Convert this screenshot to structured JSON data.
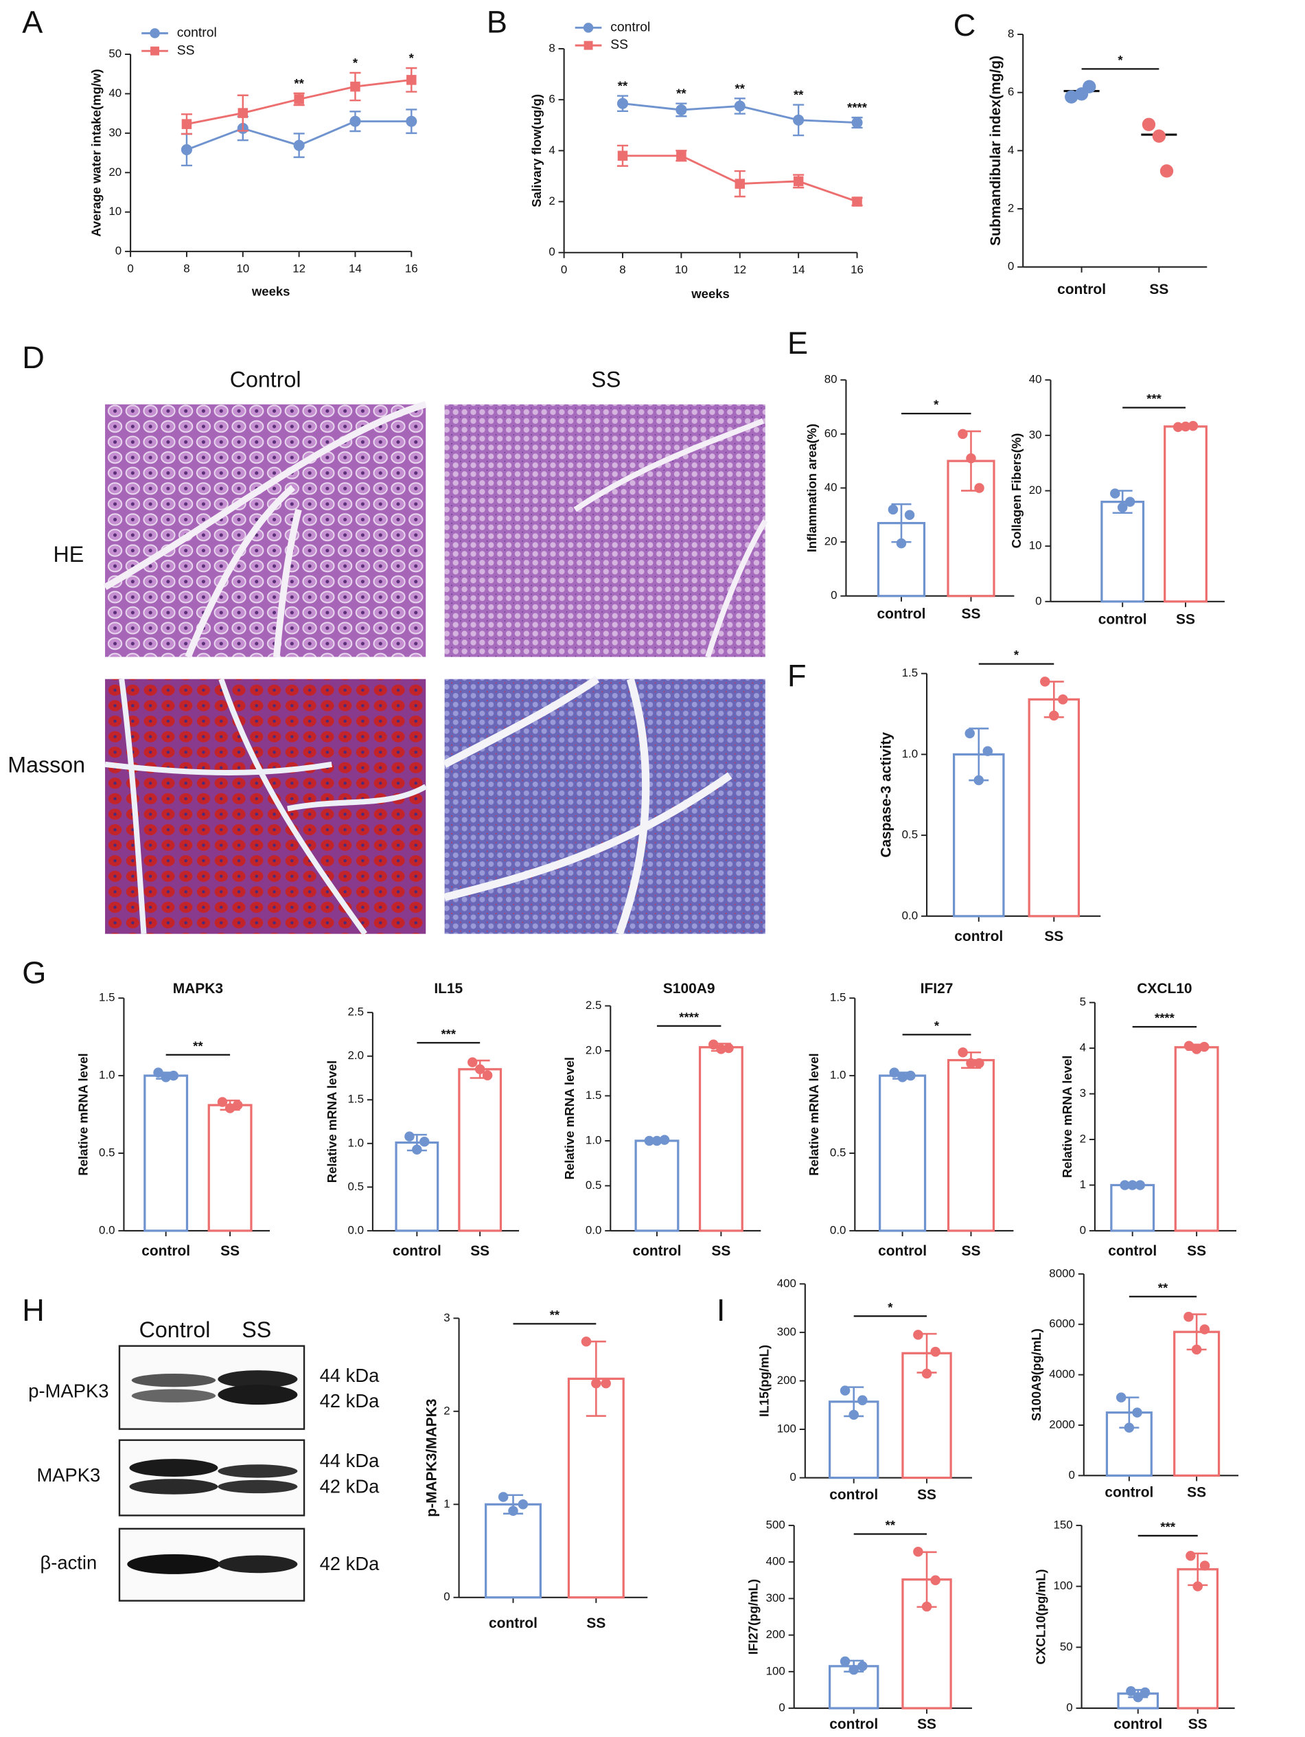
{
  "panel_labels": [
    "A",
    "B",
    "C",
    "D",
    "E",
    "F",
    "G",
    "H",
    "I"
  ],
  "histology": {
    "columns": [
      "Control",
      "SS"
    ],
    "rows": [
      "HE",
      "Masson"
    ]
  },
  "western_blot": {
    "columns": [
      "Control",
      "SS"
    ],
    "rows": [
      {
        "label": "p-MAPK3",
        "sizes": [
          "44 kDa",
          "42 kDa"
        ]
      },
      {
        "label": "MAPK3",
        "sizes": [
          "44 kDa",
          "42 kDa"
        ]
      },
      {
        "label": "β-actin",
        "sizes": [
          "42 kDa"
        ]
      }
    ]
  },
  "chart_data": [
    {
      "type": "line",
      "ylabel": "Average water intake(mg/w)",
      "xlabel": "weeks",
      "x": [
        8,
        10,
        12,
        14,
        16
      ],
      "xlim": [
        0,
        16
      ],
      "xticks": [
        0,
        8,
        10,
        12,
        14,
        16
      ],
      "ylim": [
        0,
        50
      ],
      "yticks": [
        0,
        10,
        20,
        30,
        40,
        50
      ],
      "legend": "top-left",
      "series": [
        {
          "name": "control",
          "color": "#6f93cf",
          "marker": "circle",
          "values": [
            25.8,
            31.2,
            26.9,
            33,
            33
          ],
          "errors": [
            4,
            3,
            3,
            2.5,
            3
          ]
        },
        {
          "name": "SS",
          "color": "#ec6e6e",
          "marker": "square",
          "values": [
            32.3,
            35.1,
            38.6,
            41.8,
            43.5
          ],
          "errors": [
            2.5,
            4.5,
            1.5,
            3.5,
            3
          ]
        }
      ],
      "annotations": [
        {
          "x": 12,
          "text": "**"
        },
        {
          "x": 14,
          "text": "*"
        },
        {
          "x": 16,
          "text": "*"
        }
      ]
    },
    {
      "type": "line",
      "ylabel": "Salivary flow(ug/g)",
      "xlabel": "weeks",
      "x": [
        8,
        10,
        12,
        14,
        16
      ],
      "xlim": [
        0,
        16
      ],
      "xticks": [
        0,
        8,
        10,
        12,
        14,
        16
      ],
      "ylim": [
        0,
        8
      ],
      "yticks": [
        0,
        2,
        4,
        6,
        8
      ],
      "legend": "top-left",
      "series": [
        {
          "name": "control",
          "color": "#6f93cf",
          "marker": "circle",
          "values": [
            5.85,
            5.6,
            5.75,
            5.2,
            5.1
          ],
          "errors": [
            0.3,
            0.25,
            0.3,
            0.6,
            0.2
          ]
        },
        {
          "name": "SS",
          "color": "#ec6e6e",
          "marker": "square",
          "values": [
            3.8,
            3.8,
            2.7,
            2.8,
            2.0
          ],
          "errors": [
            0.4,
            0.2,
            0.5,
            0.25,
            0.15
          ]
        }
      ],
      "annotations": [
        {
          "x": 8,
          "text": "**"
        },
        {
          "x": 10,
          "text": "**"
        },
        {
          "x": 12,
          "text": "**"
        },
        {
          "x": 14,
          "text": "**"
        },
        {
          "x": 16,
          "text": "****"
        }
      ]
    },
    {
      "type": "dot",
      "ylabel": "Submandibular index(mg/g)",
      "categories": [
        "control",
        "SS"
      ],
      "colors": [
        "#6f93cf",
        "#ec6e6e"
      ],
      "values": [
        6.05,
        4.55
      ],
      "points": [
        [
          5.85,
          6.2,
          5.95
        ],
        [
          4.9,
          3.3,
          4.5
        ]
      ],
      "ylim": [
        0,
        8
      ],
      "yticks": [
        0,
        2,
        4,
        6,
        8
      ],
      "significance": "*"
    },
    {
      "type": "bar",
      "ylabel": "Inflammation area(%)",
      "categories": [
        "control",
        "SS"
      ],
      "colors": [
        "#6f93cf",
        "#ec6e6e"
      ],
      "values": [
        27,
        50
      ],
      "errors": [
        7,
        11
      ],
      "points": [
        [
          32,
          19.5,
          30
        ],
        [
          60,
          51,
          40
        ]
      ],
      "ylim": [
        0,
        80
      ],
      "yticks": [
        0,
        20,
        40,
        60,
        80
      ],
      "significance": "*"
    },
    {
      "type": "bar",
      "ylabel": "Collagen Fibers(%)",
      "categories": [
        "control",
        "SS"
      ],
      "colors": [
        "#6f93cf",
        "#ec6e6e"
      ],
      "values": [
        18,
        31.6
      ],
      "errors": [
        2,
        0.2
      ],
      "points": [
        [
          19.5,
          17,
          18
        ],
        [
          31.5,
          31.6,
          31.7
        ]
      ],
      "ylim": [
        0,
        40
      ],
      "yticks": [
        0,
        10,
        20,
        30,
        40
      ],
      "significance": "***"
    },
    {
      "type": "bar",
      "ylabel": "Caspase-3 activity",
      "categories": [
        "control",
        "SS"
      ],
      "colors": [
        "#6f93cf",
        "#ec6e6e"
      ],
      "values": [
        1.0,
        1.34
      ],
      "errors": [
        0.16,
        0.11
      ],
      "points": [
        [
          1.13,
          0.84,
          1.02
        ],
        [
          1.45,
          1.24,
          1.34
        ]
      ],
      "ylim": [
        0,
        1.5
      ],
      "yticks": [
        {
          "value": 0,
          "label": "0.0"
        },
        0.5,
        {
          "value": 1,
          "label": "1.0"
        },
        1.5
      ],
      "significance": "*"
    },
    {
      "type": "bar",
      "title": "MAPK3",
      "ylabel": "Relative mRNA level",
      "categories": [
        "control",
        "SS"
      ],
      "colors": [
        "#6f93cf",
        "#ec6e6e"
      ],
      "values": [
        1.0,
        0.81
      ],
      "errors": [
        0.02,
        0.03
      ],
      "points": [
        [
          1.02,
          0.99,
          1.0
        ],
        [
          0.83,
          0.79,
          0.81
        ]
      ],
      "ylim": [
        0,
        1.5
      ],
      "yticks": [
        {
          "value": 0,
          "label": "0.0"
        },
        0.5,
        {
          "value": 1,
          "label": "1.0"
        },
        1.5
      ],
      "significance": "**"
    },
    {
      "type": "bar",
      "title": "IL15",
      "ylabel": "Relative mRNA level",
      "categories": [
        "control",
        "SS"
      ],
      "colors": [
        "#6f93cf",
        "#ec6e6e"
      ],
      "values": [
        1.01,
        1.85
      ],
      "errors": [
        0.09,
        0.1
      ],
      "points": [
        [
          1.08,
          0.93,
          1.02
        ],
        [
          1.93,
          1.85,
          1.78
        ]
      ],
      "ylim": [
        0,
        2.5
      ],
      "yticks": [
        {
          "value": 0,
          "label": "0.0"
        },
        0.5,
        {
          "value": 1,
          "label": "1.0"
        },
        1.5,
        {
          "value": 2,
          "label": "2.0"
        },
        2.5
      ],
      "significance": "***"
    },
    {
      "type": "bar",
      "title": "S100A9",
      "ylabel": "Relative mRNA level",
      "categories": [
        "control",
        "SS"
      ],
      "colors": [
        "#6f93cf",
        "#ec6e6e"
      ],
      "values": [
        1.0,
        2.04
      ],
      "errors": [
        0.01,
        0.04
      ],
      "points": [
        [
          1.0,
          1.0,
          1.01
        ],
        [
          2.07,
          2.02,
          2.03
        ]
      ],
      "ylim": [
        0,
        2.5
      ],
      "yticks": [
        {
          "value": 0,
          "label": "0.0"
        },
        0.5,
        {
          "value": 1,
          "label": "1.0"
        },
        1.5,
        {
          "value": 2,
          "label": "2.0"
        },
        2.5
      ],
      "significance": "****"
    },
    {
      "type": "bar",
      "title": "IFI27",
      "ylabel": "Relative mRNA level",
      "categories": [
        "control",
        "SS"
      ],
      "colors": [
        "#6f93cf",
        "#ec6e6e"
      ],
      "values": [
        1.0,
        1.1
      ],
      "errors": [
        0.02,
        0.05
      ],
      "points": [
        [
          1.02,
          0.99,
          1.0
        ],
        [
          1.15,
          1.08,
          1.08
        ]
      ],
      "ylim": [
        0,
        1.5
      ],
      "yticks": [
        {
          "value": 0,
          "label": "0.0"
        },
        0.5,
        {
          "value": 1,
          "label": "1.0"
        },
        1.5
      ],
      "significance": "*"
    },
    {
      "type": "bar",
      "title": "CXCL10",
      "ylabel": "Relative mRNA level",
      "categories": [
        "control",
        "SS"
      ],
      "colors": [
        "#6f93cf",
        "#ec6e6e"
      ],
      "values": [
        1.0,
        4.02
      ],
      "errors": [
        0.01,
        0.06
      ],
      "points": [
        [
          1,
          1,
          1
        ],
        [
          4.05,
          3.98,
          4.03
        ]
      ],
      "ylim": [
        0,
        5
      ],
      "yticks": [
        0,
        1,
        2,
        3,
        4,
        5
      ],
      "significance": "****"
    },
    {
      "type": "bar",
      "ylabel": "p-MAPK3/MAPK3",
      "categories": [
        "control",
        "SS"
      ],
      "colors": [
        "#6f93cf",
        "#ec6e6e"
      ],
      "values": [
        1.0,
        2.35
      ],
      "errors": [
        0.1,
        0.4
      ],
      "points": [
        [
          1.08,
          0.93,
          1.0
        ],
        [
          2.75,
          2.3,
          2.3
        ]
      ],
      "ylim": [
        0,
        3
      ],
      "yticks": [
        0,
        1,
        2,
        3
      ],
      "significance": "**"
    },
    {
      "type": "bar",
      "ylabel": "IL15(pg/mL)",
      "categories": [
        "control",
        "SS"
      ],
      "colors": [
        "#6f93cf",
        "#ec6e6e"
      ],
      "values": [
        157,
        257
      ],
      "errors": [
        30,
        40
      ],
      "points": [
        [
          180,
          130,
          160
        ],
        [
          295,
          215,
          260
        ]
      ],
      "ylim": [
        0,
        400
      ],
      "yticks": [
        0,
        100,
        200,
        300,
        400
      ],
      "significance": "*"
    },
    {
      "type": "bar",
      "ylabel": "S100A9(pg/mL)",
      "categories": [
        "control",
        "SS"
      ],
      "colors": [
        "#6f93cf",
        "#ec6e6e"
      ],
      "values": [
        2500,
        5700
      ],
      "errors": [
        600,
        700
      ],
      "points": [
        [
          3100,
          1900,
          2500
        ],
        [
          6300,
          5000,
          5800
        ]
      ],
      "ylim": [
        0,
        8000
      ],
      "yticks": [
        0,
        2000,
        4000,
        6000,
        8000
      ],
      "significance": "**"
    },
    {
      "type": "bar",
      "ylabel": "IFI27(pg/mL)",
      "categories": [
        "control",
        "SS"
      ],
      "colors": [
        "#6f93cf",
        "#ec6e6e"
      ],
      "values": [
        115,
        352
      ],
      "errors": [
        15,
        75
      ],
      "points": [
        [
          128,
          105,
          115
        ],
        [
          428,
          278,
          350
        ]
      ],
      "ylim": [
        0,
        500
      ],
      "yticks": [
        0,
        100,
        200,
        300,
        400,
        500
      ],
      "significance": "**"
    },
    {
      "type": "bar",
      "ylabel": "CXCL10(pg/mL)",
      "categories": [
        "control",
        "SS"
      ],
      "colors": [
        "#6f93cf",
        "#ec6e6e"
      ],
      "values": [
        12,
        114
      ],
      "errors": [
        3,
        13
      ],
      "points": [
        [
          14,
          9,
          13
        ],
        [
          125,
          100,
          117
        ]
      ],
      "ylim": [
        0,
        150
      ],
      "yticks": [
        0,
        50,
        100,
        150
      ],
      "significance": "***"
    }
  ]
}
